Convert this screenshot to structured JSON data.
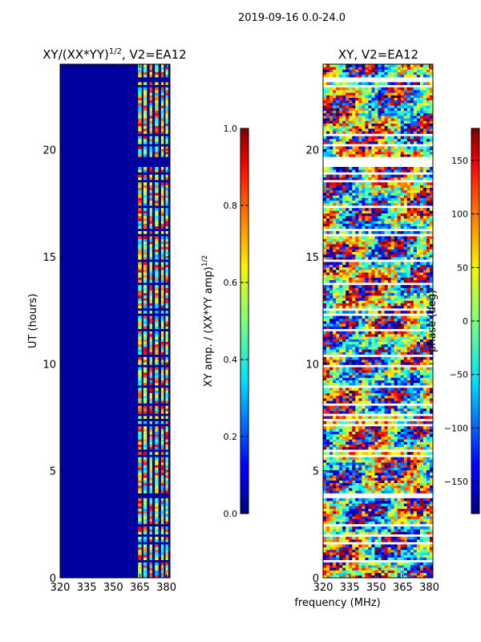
{
  "figure_title": "2019-09-16 0.0-24.0",
  "shared_xlabel": "frequency (MHz)",
  "chart_data": [
    {
      "type": "heatmap",
      "title": "XY/(XX*YY)^1/2, V2=EA12",
      "title_main": "XY/(XX*YY)",
      "title_sup": "1/2",
      "title_tail": ", V2=EA12",
      "xlabel": "",
      "ylabel": "UT (hours)",
      "xlim": [
        320,
        382
      ],
      "ylim": [
        0,
        24
      ],
      "xticks": [
        320,
        335,
        350,
        365,
        380
      ],
      "yticks": [
        0,
        5,
        10,
        15,
        20
      ],
      "colorbar": {
        "label": "XY amp. / (XX*YY amp)^1/2",
        "label_main": "XY amp. / (XX*YY amp)",
        "label_sup": "1/2",
        "range": [
          0.0,
          1.0
        ],
        "ticks": [
          0.0,
          0.2,
          0.4,
          0.6,
          0.8,
          1.0
        ],
        "tick_labels": [
          "0.0",
          "0.2",
          "0.4",
          "0.6",
          "0.8",
          "1.0"
        ]
      },
      "bright_channel_bands_mhz": [
        [
          364,
          366
        ],
        [
          367,
          369
        ],
        [
          370.5,
          372
        ],
        [
          373.5,
          375.5
        ],
        [
          377,
          378.5
        ],
        [
          379.5,
          381
        ]
      ],
      "bright_band_value": 0.6,
      "background_value": 0.03
    },
    {
      "type": "heatmap",
      "title": "XY, V2=EA12",
      "xlabel": "frequency (MHz)",
      "ylabel": "",
      "xlim": [
        320,
        382
      ],
      "ylim": [
        0,
        24
      ],
      "xticks": [
        320,
        335,
        350,
        365,
        380
      ],
      "yticks": [
        0,
        5,
        10,
        15,
        20
      ],
      "colorbar": {
        "label": "phase (deg)",
        "range": [
          -180,
          180
        ],
        "ticks": [
          150,
          100,
          50,
          0,
          -50,
          -100,
          -150
        ],
        "tick_labels": [
          "150",
          "100",
          "50",
          "0",
          "−50",
          "−100",
          "−150"
        ]
      }
    }
  ]
}
